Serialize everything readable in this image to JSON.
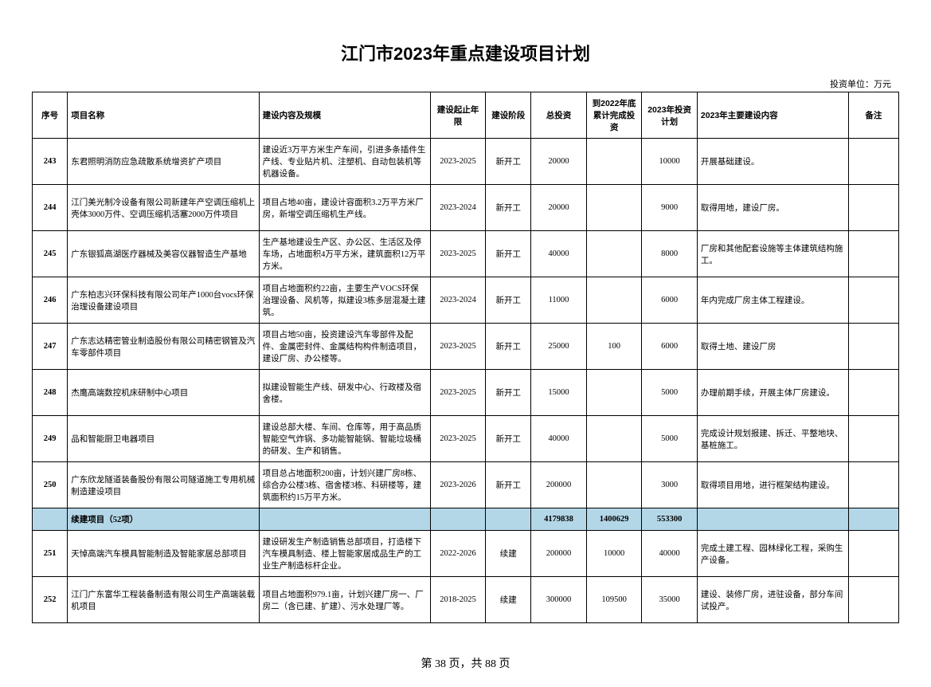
{
  "title": "江门市2023年重点建设项目计划",
  "unit_note": "投资单位：万元",
  "columns": [
    "序号",
    "项目名称",
    "建设内容及规模",
    "建设起止年限",
    "建设阶段",
    "总投资",
    "到2022年底累计完成投资",
    "2023年投资计划",
    "2023年主要建设内容",
    "备注"
  ],
  "rows": [
    {
      "seq": "243",
      "name": "东君照明消防应急疏散系统增资扩产项目",
      "content": "建设近3万平方米生产车间，引进多条插件生产线、专业贴片机、注塑机、自动包装机等机器设备。",
      "period": "2023-2025",
      "phase": "新开工",
      "total": "20000",
      "acc2022": "",
      "plan2023": "10000",
      "main2023": "开展基础建设。",
      "remark": ""
    },
    {
      "seq": "244",
      "name": "江门美光制冷设备有限公司新建年产空调压缩机上壳体3000万件、空调压缩机活塞2000万件项目",
      "content": "项目占地40亩，建设计容面积3.2万平方米厂房，新增空调压缩机生产线。",
      "period": "2023-2024",
      "phase": "新开工",
      "total": "20000",
      "acc2022": "",
      "plan2023": "9000",
      "main2023": "取得用地，建设厂房。",
      "remark": ""
    },
    {
      "seq": "245",
      "name": "广东银狐高湖医疗器械及美容仪器智造生产基地",
      "content": "生产基地建设生产区、办公区、生活区及停车场，占地面积4万平方米，建筑面积12万平方米。",
      "period": "2023-2025",
      "phase": "新开工",
      "total": "40000",
      "acc2022": "",
      "plan2023": "8000",
      "main2023": "厂房和其他配套设施等主体建筑结构施工。",
      "remark": ""
    },
    {
      "seq": "246",
      "name": "广东柏志兴环保科技有限公司年产1000台vocs环保治理设备建设项目",
      "content": "项目占地面积约22亩，主要生产VOCS环保治理设备、风机等，拟建设3栋多层混凝土建筑。",
      "period": "2023-2024",
      "phase": "新开工",
      "total": "11000",
      "acc2022": "",
      "plan2023": "6000",
      "main2023": "年内完成厂房主体工程建设。",
      "remark": ""
    },
    {
      "seq": "247",
      "name": "广东志达精密管业制造股份有限公司精密钢管及汽车零部件项目",
      "content": "项目占地50亩，投资建设汽车零部件及配件、金属密封件、金属结构构件制造项目，建设厂房、办公楼等。",
      "period": "2023-2025",
      "phase": "新开工",
      "total": "25000",
      "acc2022": "100",
      "plan2023": "6000",
      "main2023": "取得土地、建设厂房",
      "remark": ""
    },
    {
      "seq": "248",
      "name": "杰鹰高端数控机床研制中心项目",
      "content": "拟建设智能生产线、研发中心、行政楼及宿舍楼。",
      "period": "2023-2025",
      "phase": "新开工",
      "total": "15000",
      "acc2022": "",
      "plan2023": "5000",
      "main2023": "办理前期手续，开展主体厂房建设。",
      "remark": ""
    },
    {
      "seq": "249",
      "name": "品和智能厨卫电器项目",
      "content": "建设总部大楼、车间、仓库等，用于高品质智能空气炸锅、多功能智能锅、智能垃圾桶的研发、生产和销售。",
      "period": "2023-2025",
      "phase": "新开工",
      "total": "40000",
      "acc2022": "",
      "plan2023": "5000",
      "main2023": "完成设计规划报建、拆迁、平整地块、基桩施工。",
      "remark": ""
    },
    {
      "seq": "250",
      "name": "广东欣龙隧道装备股份有限公司隧道施工专用机械制造建设项目",
      "content": "项目总占地面积200亩，计划兴建厂房8栋、综合办公楼3栋、宿舍楼3栋、科研楼等，建筑面积约15万平方米。",
      "period": "2023-2026",
      "phase": "新开工",
      "total": "200000",
      "acc2022": "",
      "plan2023": "3000",
      "main2023": "取得项目用地，进行框架结构建设。",
      "remark": ""
    },
    {
      "summary": true,
      "seq": "",
      "name": "续建项目（52项）",
      "content": "",
      "period": "",
      "phase": "",
      "total": "4179838",
      "acc2022": "1400629",
      "plan2023": "553300",
      "main2023": "",
      "remark": ""
    },
    {
      "seq": "251",
      "name": "天悼高端汽车模具智能制造及智能家居总部项目",
      "content": "建设研发生产制造销售总部项目，打造楼下汽车模具制造、楼上智能家居成品生产的工业生产制造标杆企业。",
      "period": "2022-2026",
      "phase": "续建",
      "total": "200000",
      "acc2022": "10000",
      "plan2023": "40000",
      "main2023": "完成土建工程、园林绿化工程，采购生产设备。",
      "remark": ""
    },
    {
      "seq": "252",
      "name": "江门广东富华工程装备制造有限公司生产高端装载机项目",
      "content": "项目占地面积979.1亩，计划兴建厂房一、厂房二（含已建、扩建）、污水处理厂等。",
      "period": "2018-2025",
      "phase": "续建",
      "total": "300000",
      "acc2022": "109500",
      "plan2023": "35000",
      "main2023": "建设、装修厂房，进驻设备，部分车间试投产。",
      "remark": ""
    }
  ],
  "footer": "第 38 页，共 88 页"
}
